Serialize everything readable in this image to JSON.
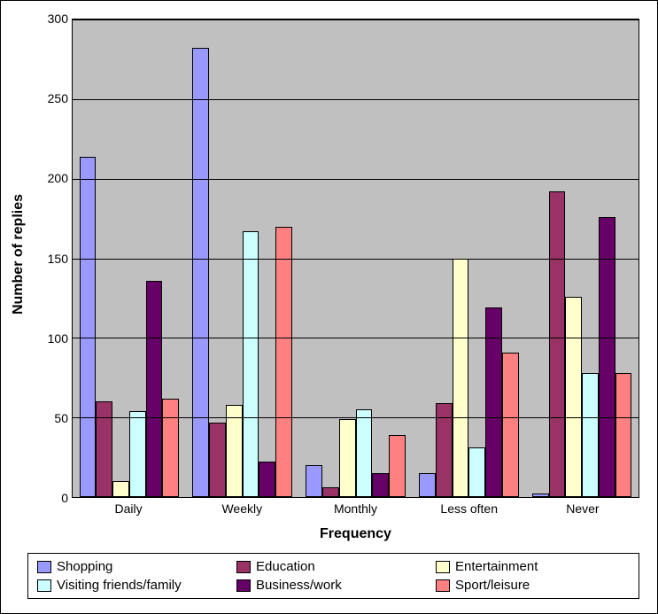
{
  "chart": {
    "type": "bar",
    "ylabel": "Number of replies",
    "xlabel": "Frequency",
    "background_color": "#c0c0c0",
    "grid_color": "#000000",
    "ylim_max": 300,
    "ytick_step": 50,
    "yticks": [
      0,
      50,
      100,
      150,
      200,
      250,
      300
    ],
    "categories": [
      "Daily",
      "Weekly",
      "Monthly",
      "Less often",
      "Never"
    ],
    "series": [
      {
        "name": "Shopping",
        "color": "#9999ff"
      },
      {
        "name": "Education",
        "color": "#993366"
      },
      {
        "name": "Entertainment",
        "color": "#ffffcc"
      },
      {
        "name": "Visiting friends/family",
        "color": "#ccffff"
      },
      {
        "name": "Business/work",
        "color": "#660066"
      },
      {
        "name": "Sport/leisure",
        "color": "#ff8080"
      }
    ],
    "values": [
      [
        214,
        60,
        10,
        54,
        136,
        62
      ],
      [
        282,
        47,
        58,
        167,
        22,
        170
      ],
      [
        20,
        6,
        49,
        55,
        15,
        39
      ],
      [
        15,
        59,
        150,
        31,
        119,
        91
      ],
      [
        2,
        192,
        126,
        78,
        176,
        78
      ]
    ],
    "label_fontsize": 14,
    "title_fontsize": 16
  }
}
